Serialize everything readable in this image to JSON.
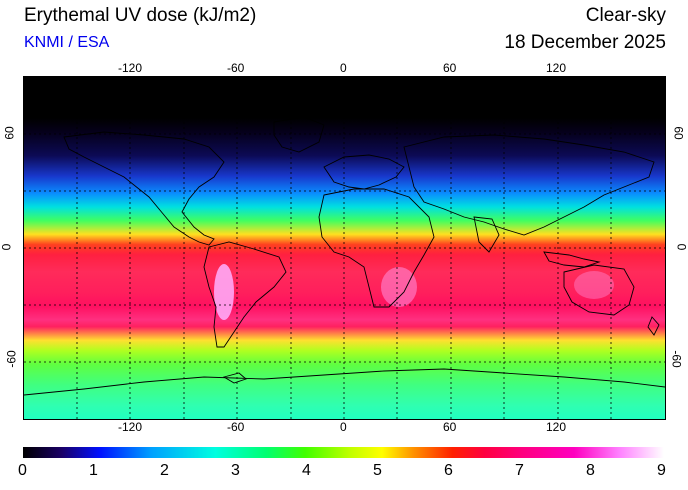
{
  "header": {
    "title": "Erythemal UV dose (kJ/m2)",
    "credit": "KNMI / ESA",
    "condition": "Clear-sky",
    "date": "18 December 2025"
  },
  "map": {
    "projection": "equirectangular",
    "lon_ticks": [
      "-120",
      "-60",
      "0",
      "60",
      "120"
    ],
    "lat_ticks": [
      "60",
      "0",
      "-60"
    ],
    "gridlines": "dashed"
  },
  "colorbar": {
    "range": [
      0,
      9
    ],
    "labels": [
      "0",
      "1",
      "2",
      "3",
      "4",
      "5",
      "6",
      "7",
      "8",
      "9"
    ]
  },
  "colors": {
    "credit": "#0000ee",
    "polar_night": "#000000",
    "tropics": "#ff2050",
    "max_dose": "#ffffff"
  }
}
